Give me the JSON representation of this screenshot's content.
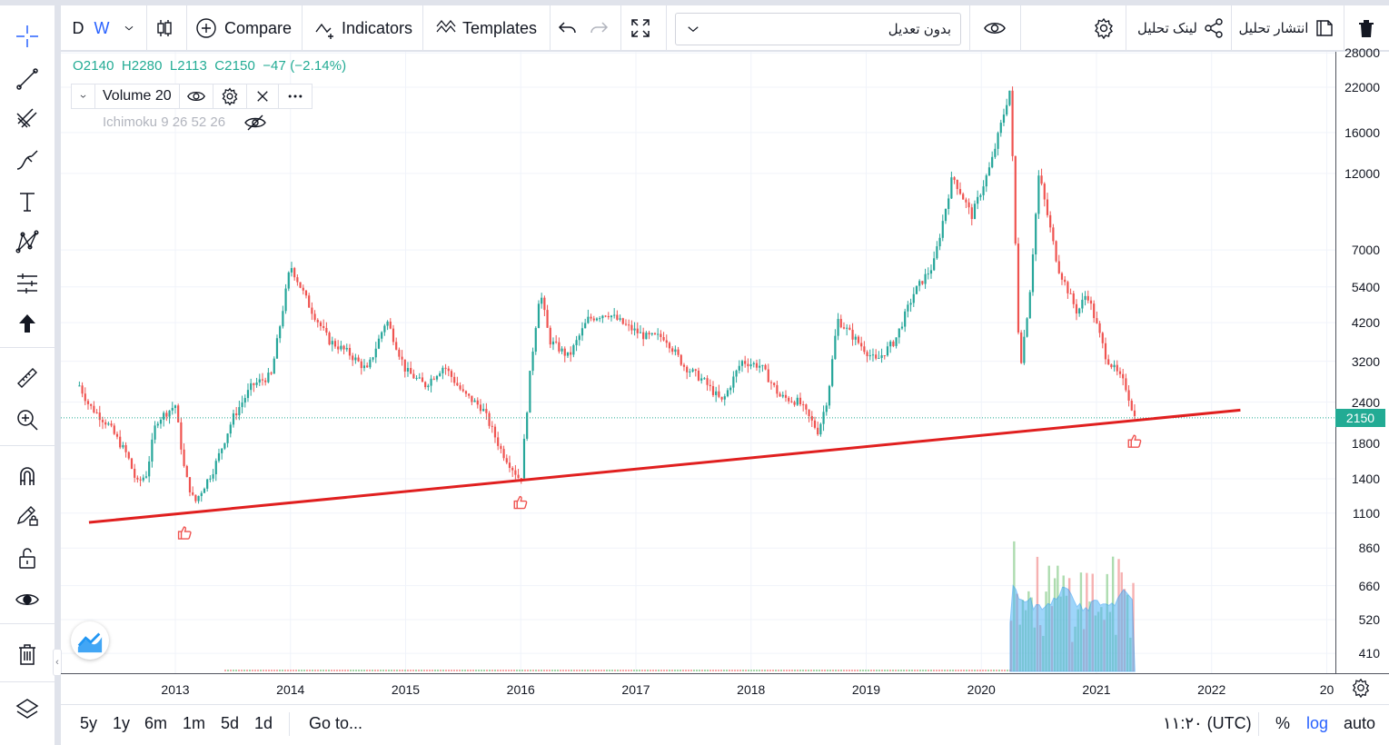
{
  "toolbar": {
    "resolution_d": "D",
    "resolution_w": "W",
    "compare_label": "Compare",
    "indicators_label": "Indicators",
    "templates_label": "Templates",
    "adjust_label": "بدون تعدیل",
    "share_link_label": "لینک تحلیل",
    "publish_label": "انتشار تحلیل"
  },
  "legend": {
    "open": "O2140",
    "high": "H2280",
    "low": "L2113",
    "close": "C2150",
    "change": "−47 (−2.14%)",
    "volume_label": "Volume 20",
    "ichimoku_label": "Ichimoku 9 26 52 26"
  },
  "bottom": {
    "ranges": [
      "5y",
      "1y",
      "6m",
      "1m",
      "5d",
      "1d"
    ],
    "goto_label": "Go to...",
    "time_label": "۱۱:۲۰ (UTC)",
    "percent_label": "%",
    "log_label": "log",
    "auto_label": "auto"
  },
  "colors": {
    "up": "#26a69a",
    "down": "#ef5350",
    "trendline": "#e01f1f",
    "accent": "#2962ff",
    "last_price_bg": "#22ab94"
  },
  "chart_data": {
    "type": "candlestick",
    "scale": "log",
    "last_price": 2150,
    "y_ticks": [
      410,
      520,
      660,
      860,
      1100,
      1400,
      1800,
      2400,
      3200,
      4200,
      5400,
      7000,
      12000,
      16000,
      22000,
      28000
    ],
    "x_ticks": [
      "2013",
      "2014",
      "2015",
      "2016",
      "2017",
      "2018",
      "2019",
      "2020",
      "2021",
      "2022",
      "20"
    ],
    "price_path": [
      [
        "2012-03",
        2700
      ],
      [
        "2012-04",
        2350
      ],
      [
        "2012-06",
        2050
      ],
      [
        "2012-08",
        1650
      ],
      [
        "2012-09",
        1350
      ],
      [
        "2012-10",
        1450
      ],
      [
        "2012-11",
        2100
      ],
      [
        "2013-01",
        2350
      ],
      [
        "2013-02",
        1450
      ],
      [
        "2013-03",
        1180
      ],
      [
        "2013-05",
        1500
      ],
      [
        "2013-07",
        2150
      ],
      [
        "2013-09",
        2700
      ],
      [
        "2013-11",
        2900
      ],
      [
        "2014-01",
        6300
      ],
      [
        "2014-03",
        4700
      ],
      [
        "2014-05",
        3700
      ],
      [
        "2014-07",
        3400
      ],
      [
        "2014-09",
        3000
      ],
      [
        "2014-11",
        4300
      ],
      [
        "2015-01",
        3000
      ],
      [
        "2015-03",
        2700
      ],
      [
        "2015-05",
        3100
      ],
      [
        "2015-07",
        2550
      ],
      [
        "2015-09",
        2300
      ],
      [
        "2015-11",
        1700
      ],
      [
        "2016-01",
        1380
      ],
      [
        "2016-02",
        3000
      ],
      [
        "2016-03",
        5300
      ],
      [
        "2016-04",
        3700
      ],
      [
        "2016-06",
        3300
      ],
      [
        "2016-08",
        4300
      ],
      [
        "2016-10",
        4500
      ],
      [
        "2016-12",
        4100
      ],
      [
        "2017-02",
        3800
      ],
      [
        "2017-04",
        3800
      ],
      [
        "2017-06",
        3100
      ],
      [
        "2017-08",
        2800
      ],
      [
        "2017-10",
        2400
      ],
      [
        "2017-12",
        3200
      ],
      [
        "2018-02",
        3100
      ],
      [
        "2018-04",
        2500
      ],
      [
        "2018-06",
        2400
      ],
      [
        "2018-08",
        1950
      ],
      [
        "2018-09",
        2500
      ],
      [
        "2018-10",
        4300
      ],
      [
        "2018-12",
        3700
      ],
      [
        "2019-02",
        3200
      ],
      [
        "2019-04",
        3700
      ],
      [
        "2019-06",
        5200
      ],
      [
        "2019-08",
        6300
      ],
      [
        "2019-10",
        11800
      ],
      [
        "2019-12",
        8900
      ],
      [
        "2020-02",
        12800
      ],
      [
        "2020-04",
        21800
      ],
      [
        "2020-05",
        3000
      ],
      [
        "2020-06",
        5000
      ],
      [
        "2020-07",
        12000
      ],
      [
        "2020-09",
        6200
      ],
      [
        "2020-11",
        4500
      ],
      [
        "2020-12",
        5200
      ],
      [
        "2021-02",
        3300
      ],
      [
        "2021-04",
        2700
      ],
      [
        "2021-05",
        2150
      ]
    ],
    "trendline": {
      "from": [
        "2012-04",
        1030
      ],
      "to": [
        "2022-04",
        2270
      ],
      "label": ""
    },
    "touch_points": [
      [
        "2013-02",
        1050
      ],
      [
        "2016-01",
        1300
      ],
      [
        "2021-05",
        2000
      ]
    ],
    "volume": {
      "start": "2020-04",
      "end": "2021-05",
      "peak": 1050,
      "ma_period": 20
    }
  }
}
